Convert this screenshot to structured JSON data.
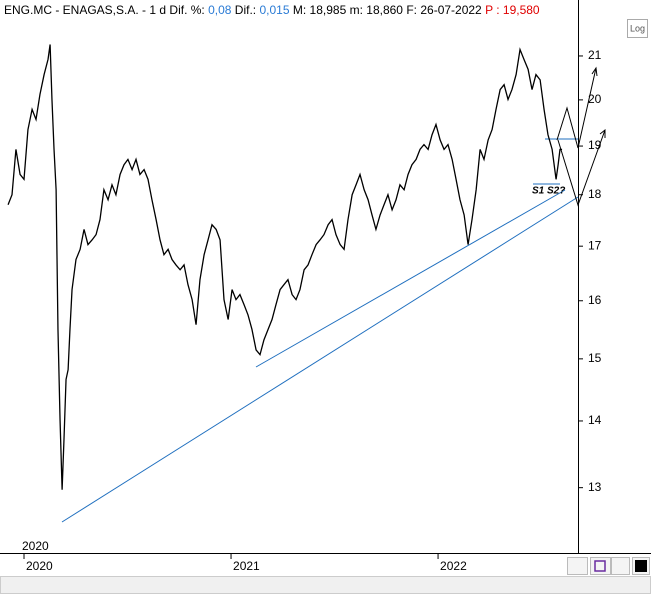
{
  "chart_data": {
    "type": "line",
    "header": {
      "symbol": "ENG.MC - ENAGAS,S.A. -",
      "period": "1 d",
      "dif_pct_label": "Dif. %:",
      "dif_pct": "0,08",
      "dif_label": "Dif.:",
      "dif": "0,015",
      "max_label": "M:",
      "max": "18,985",
      "min_label": "m:",
      "min": "18,860",
      "date_label": "F:",
      "date": "26-07-2022",
      "price_label": "P :",
      "price": "19,580"
    },
    "log_button": "Log",
    "log_scale": true,
    "color": "#000000",
    "xlim": [
      2019.884,
      2022.676
    ],
    "xticks": [
      2020,
      2021,
      2022
    ],
    "ylim": [
      12.09,
      22.1
    ],
    "yticks": [
      13,
      14,
      15,
      16,
      17,
      18,
      19,
      20,
      21
    ],
    "annotations": [
      "S1 S2?"
    ],
    "x": [
      2019.923,
      2019.942,
      2019.961,
      2019.981,
      2020.0,
      2020.019,
      2020.039,
      2020.058,
      2020.077,
      2020.097,
      2020.116,
      2020.126,
      2020.135,
      2020.145,
      2020.155,
      2020.164,
      2020.174,
      2020.184,
      2020.193,
      2020.203,
      2020.213,
      2020.222,
      2020.232,
      2020.251,
      2020.271,
      2020.29,
      2020.309,
      2020.329,
      2020.348,
      2020.367,
      2020.386,
      2020.406,
      2020.425,
      2020.444,
      2020.464,
      2020.483,
      2020.502,
      2020.522,
      2020.541,
      2020.56,
      2020.58,
      2020.599,
      2020.618,
      2020.638,
      2020.657,
      2020.676,
      2020.696,
      2020.715,
      2020.734,
      2020.754,
      2020.773,
      2020.792,
      2020.812,
      2020.831,
      2020.85,
      2020.87,
      2020.889,
      2020.908,
      2020.928,
      2020.947,
      2020.966,
      2020.986,
      2021.005,
      2021.024,
      2021.043,
      2021.063,
      2021.082,
      2021.101,
      2021.121,
      2021.14,
      2021.159,
      2021.179,
      2021.198,
      2021.217,
      2021.237,
      2021.256,
      2021.275,
      2021.295,
      2021.314,
      2021.333,
      2021.353,
      2021.372,
      2021.391,
      2021.411,
      2021.43,
      2021.449,
      2021.469,
      2021.488,
      2021.507,
      2021.527,
      2021.546,
      2021.565,
      2021.585,
      2021.604,
      2021.623,
      2021.643,
      2021.662,
      2021.681,
      2021.7,
      2021.72,
      2021.739,
      2021.758,
      2021.778,
      2021.797,
      2021.816,
      2021.836,
      2021.855,
      2021.874,
      2021.894,
      2021.913,
      2021.932,
      2021.952,
      2021.971,
      2021.99,
      2022.01,
      2022.029,
      2022.048,
      2022.068,
      2022.087,
      2022.106,
      2022.126,
      2022.145,
      2022.164,
      2022.184,
      2022.203,
      2022.222,
      2022.242,
      2022.261,
      2022.28,
      2022.3,
      2022.319,
      2022.338,
      2022.357,
      2022.377,
      2022.396,
      2022.415,
      2022.435,
      2022.454,
      2022.473,
      2022.493,
      2022.512,
      2022.531,
      2022.551,
      2022.57,
      2022.58,
      2022.589,
      2022.599
    ],
    "values": [
      17.8,
      18.0,
      18.93,
      18.41,
      18.31,
      19.35,
      19.79,
      19.57,
      20.12,
      20.57,
      20.92,
      21.27,
      20.01,
      18.93,
      18.1,
      15.5,
      14.02,
      12.97,
      13.71,
      14.66,
      14.82,
      15.5,
      16.2,
      16.75,
      16.94,
      17.32,
      17.03,
      17.12,
      17.22,
      17.51,
      18.1,
      17.9,
      18.2,
      18.0,
      18.41,
      18.61,
      18.72,
      18.51,
      18.72,
      18.41,
      18.51,
      18.31,
      17.9,
      17.51,
      17.12,
      16.84,
      16.94,
      16.75,
      16.65,
      16.56,
      16.65,
      16.29,
      16.02,
      15.58,
      16.38,
      16.84,
      17.12,
      17.41,
      17.32,
      17.12,
      16.02,
      15.67,
      16.2,
      16.02,
      16.11,
      15.93,
      15.75,
      15.5,
      15.15,
      15.07,
      15.32,
      15.5,
      15.67,
      15.93,
      16.2,
      16.29,
      16.38,
      16.11,
      16.02,
      16.2,
      16.56,
      16.65,
      16.84,
      17.03,
      17.12,
      17.22,
      17.41,
      17.51,
      17.22,
      17.03,
      16.94,
      17.51,
      18.0,
      18.2,
      18.41,
      18.1,
      17.9,
      17.6,
      17.32,
      17.6,
      17.8,
      18.0,
      17.7,
      17.9,
      18.2,
      18.1,
      18.41,
      18.61,
      18.72,
      18.93,
      19.03,
      18.93,
      19.24,
      19.46,
      19.13,
      18.93,
      19.03,
      18.72,
      18.31,
      17.9,
      17.6,
      17.03,
      17.51,
      18.1,
      18.93,
      18.72,
      19.13,
      19.35,
      19.79,
      20.23,
      20.34,
      20.01,
      20.23,
      20.57,
      21.15,
      20.92,
      20.69,
      20.23,
      20.57,
      20.45,
      19.79,
      19.24,
      18.93,
      18.31,
      18.61,
      18.93,
      18.93
    ]
  }
}
